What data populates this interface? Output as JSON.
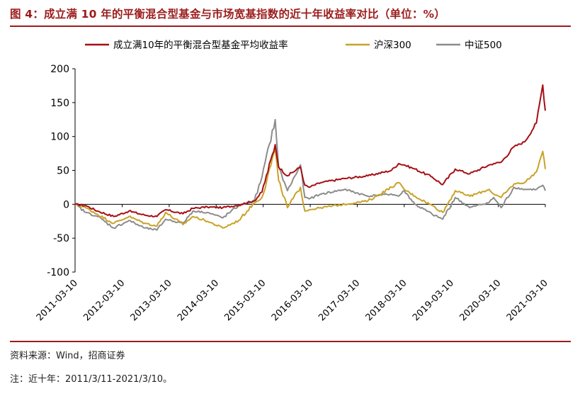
{
  "figure": {
    "title": "图 4：成立满 10 年的平衡混合型基金与市场宽基指数的近十年收益率对比（单位：%）",
    "source": "资料来源：Wind，招商证券",
    "note": "注：近十年：2011/3/11-2021/3/10。"
  },
  "colors": {
    "fund": "#A50F15",
    "hs300": "#C9A227",
    "zz500": "#8C8C8C",
    "accent": "#9c1c1c"
  },
  "chart_data": {
    "type": "line",
    "title": "",
    "xlabel": "",
    "ylabel": "",
    "ylim": [
      -100,
      200
    ],
    "yticks": [
      -100,
      -50,
      0,
      50,
      100,
      150,
      200
    ],
    "ytick_labels": [
      "-100",
      "-50",
      "0",
      "50",
      "100",
      "150",
      "200"
    ],
    "xlim": [
      "2011-03-10",
      "2021-03-10"
    ],
    "xticks": [
      "2011-03-10",
      "2012-03-10",
      "2013-03-10",
      "2014-03-10",
      "2015-03-10",
      "2016-03-10",
      "2017-03-10",
      "2018-03-10",
      "2019-03-10",
      "2020-03-10",
      "2021-03-10"
    ],
    "grid": false,
    "legend_position": "top",
    "series": [
      {
        "name": "成立满10年的平衡混合型基金平均收益率",
        "color": "#A50F15",
        "points": [
          [
            "2011-03-10",
            0
          ],
          [
            "2011-06-01",
            -2
          ],
          [
            "2011-09-01",
            -10
          ],
          [
            "2012-01-05",
            -18
          ],
          [
            "2012-05-01",
            -10
          ],
          [
            "2012-09-01",
            -16
          ],
          [
            "2012-12-05",
            -18
          ],
          [
            "2013-02-10",
            -8
          ],
          [
            "2013-06-25",
            -14
          ],
          [
            "2013-09-10",
            -6
          ],
          [
            "2014-01-01",
            -4
          ],
          [
            "2014-05-01",
            -5
          ],
          [
            "2014-09-01",
            -1
          ],
          [
            "2014-12-31",
            5
          ],
          [
            "2015-03-01",
            18
          ],
          [
            "2015-06-12",
            88
          ],
          [
            "2015-07-08",
            55
          ],
          [
            "2015-09-15",
            42
          ],
          [
            "2015-12-25",
            55
          ],
          [
            "2016-01-28",
            28
          ],
          [
            "2016-03-01",
            25
          ],
          [
            "2016-06-01",
            32
          ],
          [
            "2016-12-01",
            38
          ],
          [
            "2017-06-01",
            42
          ],
          [
            "2017-12-01",
            50
          ],
          [
            "2018-01-25",
            60
          ],
          [
            "2018-03-10",
            58
          ],
          [
            "2018-06-01",
            52
          ],
          [
            "2018-10-15",
            40
          ],
          [
            "2019-01-03",
            29
          ],
          [
            "2019-04-10",
            52
          ],
          [
            "2019-08-01",
            45
          ],
          [
            "2019-12-31",
            58
          ],
          [
            "2020-02-03",
            60
          ],
          [
            "2020-04-01",
            62
          ],
          [
            "2020-07-10",
            85
          ],
          [
            "2020-09-30",
            92
          ],
          [
            "2020-12-31",
            120
          ],
          [
            "2021-02-18",
            176
          ],
          [
            "2021-03-10",
            138
          ]
        ]
      },
      {
        "name": "沪深300",
        "color": "#C9A227",
        "points": [
          [
            "2011-03-10",
            0
          ],
          [
            "2011-06-01",
            -5
          ],
          [
            "2011-09-01",
            -15
          ],
          [
            "2012-01-05",
            -28
          ],
          [
            "2012-05-01",
            -18
          ],
          [
            "2012-09-01",
            -28
          ],
          [
            "2012-12-05",
            -32
          ],
          [
            "2013-02-10",
            -12
          ],
          [
            "2013-06-25",
            -30
          ],
          [
            "2013-09-10",
            -18
          ],
          [
            "2014-01-01",
            -25
          ],
          [
            "2014-05-01",
            -35
          ],
          [
            "2014-09-01",
            -24
          ],
          [
            "2014-12-31",
            2
          ],
          [
            "2015-03-01",
            10
          ],
          [
            "2015-06-12",
            82
          ],
          [
            "2015-07-08",
            35
          ],
          [
            "2015-09-15",
            -5
          ],
          [
            "2015-12-25",
            25
          ],
          [
            "2016-01-28",
            -10
          ],
          [
            "2016-03-01",
            -8
          ],
          [
            "2016-06-01",
            -5
          ],
          [
            "2016-12-01",
            0
          ],
          [
            "2017-06-01",
            5
          ],
          [
            "2017-12-01",
            25
          ],
          [
            "2018-01-25",
            32
          ],
          [
            "2018-03-10",
            22
          ],
          [
            "2018-06-01",
            12
          ],
          [
            "2018-10-15",
            -2
          ],
          [
            "2019-01-03",
            -12
          ],
          [
            "2019-04-10",
            20
          ],
          [
            "2019-08-01",
            12
          ],
          [
            "2019-12-31",
            22
          ],
          [
            "2020-02-03",
            15
          ],
          [
            "2020-04-01",
            10
          ],
          [
            "2020-07-10",
            30
          ],
          [
            "2020-09-30",
            32
          ],
          [
            "2020-12-31",
            48
          ],
          [
            "2021-02-18",
            78
          ],
          [
            "2021-03-10",
            52
          ]
        ]
      },
      {
        "name": "中证500",
        "color": "#8C8C8C",
        "points": [
          [
            "2011-03-10",
            0
          ],
          [
            "2011-06-01",
            -12
          ],
          [
            "2011-09-01",
            -18
          ],
          [
            "2012-01-05",
            -35
          ],
          [
            "2012-05-01",
            -24
          ],
          [
            "2012-09-01",
            -35
          ],
          [
            "2012-12-05",
            -38
          ],
          [
            "2013-02-10",
            -22
          ],
          [
            "2013-06-25",
            -28
          ],
          [
            "2013-09-10",
            -10
          ],
          [
            "2014-01-01",
            -12
          ],
          [
            "2014-05-01",
            -20
          ],
          [
            "2014-09-01",
            -2
          ],
          [
            "2014-12-31",
            5
          ],
          [
            "2015-03-01",
            40
          ],
          [
            "2015-06-12",
            125
          ],
          [
            "2015-07-08",
            55
          ],
          [
            "2015-09-15",
            20
          ],
          [
            "2015-12-25",
            58
          ],
          [
            "2016-01-28",
            10
          ],
          [
            "2016-03-01",
            8
          ],
          [
            "2016-06-01",
            15
          ],
          [
            "2016-12-01",
            22
          ],
          [
            "2017-06-01",
            12
          ],
          [
            "2017-12-01",
            15
          ],
          [
            "2018-01-25",
            12
          ],
          [
            "2018-03-10",
            20
          ],
          [
            "2018-06-01",
            0
          ],
          [
            "2018-10-15",
            -15
          ],
          [
            "2019-01-03",
            -22
          ],
          [
            "2019-04-10",
            10
          ],
          [
            "2019-08-01",
            -5
          ],
          [
            "2019-12-31",
            3
          ],
          [
            "2020-02-03",
            10
          ],
          [
            "2020-04-01",
            -5
          ],
          [
            "2020-07-10",
            25
          ],
          [
            "2020-09-30",
            22
          ],
          [
            "2020-12-31",
            22
          ],
          [
            "2021-02-18",
            28
          ],
          [
            "2021-03-10",
            20
          ]
        ]
      }
    ]
  }
}
